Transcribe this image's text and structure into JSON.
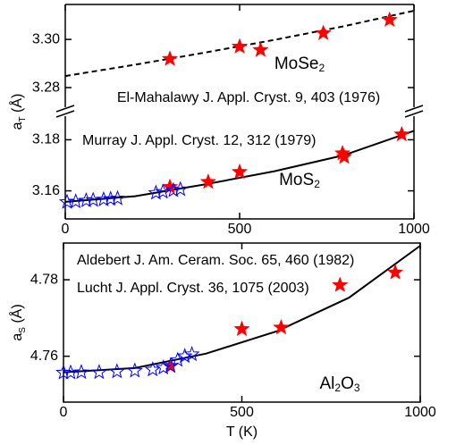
{
  "chart_data": [
    {
      "type": "scatter",
      "label": [
        "MoSe",
        "2"
      ],
      "ylabel": [
        "a",
        "T",
        " (Å)"
      ],
      "xlim": [
        0,
        1000
      ],
      "ylim": [
        3.27,
        3.3145
      ],
      "yticks": [
        3.28,
        {
          "value": 3.3,
          "label": "3.30"
        }
      ],
      "series": [
        {
          "name": "El-Mahalawy J. Appl. Cryst. 9, 403 (1976)",
          "color": "#ff0000",
          "marker": "star",
          "x": [
            300,
            500,
            560,
            740,
            930
          ],
          "values": [
            3.2919,
            3.297,
            3.2956,
            3.3026,
            3.3081
          ]
        },
        {
          "color": "#000000",
          "line_style": "dashed",
          "x": [
            0,
            200,
            400,
            600,
            800,
            1000
          ],
          "values": [
            3.2848,
            3.2895,
            3.2945,
            3.2998,
            3.3055,
            3.3119
          ]
        }
      ]
    },
    {
      "type": "scatter",
      "label": [
        "MoS",
        "2"
      ],
      "xlim": [
        0,
        1000
      ],
      "xticks": [
        0,
        500,
        1000
      ],
      "ylim": [
        3.149,
        3.191
      ],
      "yticks": [
        3.16,
        3.18
      ],
      "series": [
        {
          "color": "#ff0000",
          "marker": "star",
          "x": [
            300,
            410,
            500,
            795,
            800,
            965
          ],
          "values": [
            3.1615,
            3.1635,
            3.1674,
            3.1747,
            3.1733,
            3.1821
          ]
        },
        {
          "name": "Murray J. Appl. Cryst. 12, 312 (1979)",
          "color": "#0000ff",
          "marker": "star-open",
          "x": [
            5,
            30,
            60,
            80,
            110,
            130,
            150,
            260,
            280,
            310,
            330
          ],
          "values": [
            3.1556,
            3.1558,
            3.1562,
            3.1564,
            3.1566,
            3.1568,
            3.157,
            3.1592,
            3.1596,
            3.1602,
            3.1606
          ]
        },
        {
          "color": "#000000",
          "line_style": "solid",
          "x": [
            0,
            200,
            400,
            600,
            800,
            1000
          ],
          "values": [
            3.1557,
            3.1579,
            3.1625,
            3.1677,
            3.174,
            3.1835
          ]
        }
      ]
    },
    {
      "type": "scatter",
      "label": [
        "Al",
        "2",
        "O",
        "3"
      ],
      "ylabel": [
        "a",
        "S",
        " (Å)"
      ],
      "xlabel": "T (K)",
      "xlim": [
        0,
        1000
      ],
      "xticks": [
        0,
        500,
        1000
      ],
      "ylim": [
        4.748,
        4.7896
      ],
      "yticks": [
        4.76,
        4.78
      ],
      "series": [
        {
          "name": "Aldebert J. Am. Ceram. Soc. 65, 460 (1982)",
          "color": "#ff0000",
          "marker": "star",
          "x": [
            300,
            500,
            610,
            775,
            930
          ],
          "values": [
            4.7574,
            4.7671,
            4.7675,
            4.7786,
            4.7819
          ]
        },
        {
          "name": "Lucht J. Appl. Cryst. 36, 1075 (2003)",
          "color": "#0000ff",
          "marker": "star-open",
          "x": [
            0,
            20,
            50,
            100,
            150,
            200,
            250,
            280,
            300,
            320,
            340,
            360
          ],
          "values": [
            4.7557,
            4.7557,
            4.7558,
            4.7558,
            4.756,
            4.7562,
            4.7565,
            4.757,
            4.7575,
            4.759,
            4.76,
            4.7605
          ]
        },
        {
          "color": "#000000",
          "line_style": "solid",
          "x": [
            0,
            200,
            400,
            600,
            800,
            1000
          ],
          "values": [
            4.7558,
            4.7569,
            4.7607,
            4.7666,
            4.7753,
            4.7889
          ]
        }
      ]
    }
  ]
}
